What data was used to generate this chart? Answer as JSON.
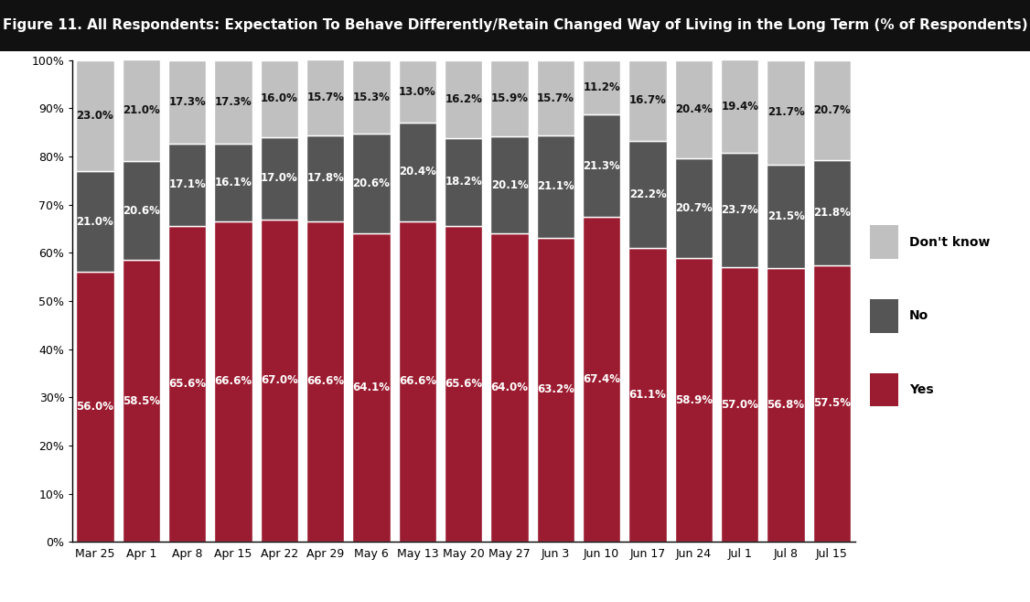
{
  "title": "Figure 11. All Respondents: Expectation To Behave Differently/Retain Changed Way of Living in the Long Term (% of Respondents)",
  "categories": [
    "Mar 25",
    "Apr 1",
    "Apr 8",
    "Apr 15",
    "Apr 22",
    "Apr 29",
    "May 6",
    "May 13",
    "May 20",
    "May 27",
    "Jun 3",
    "Jun 10",
    "Jun 17",
    "Jun 24",
    "Jul 1",
    "Jul 8",
    "Jul 15"
  ],
  "yes": [
    56.0,
    58.5,
    65.6,
    66.6,
    67.0,
    66.6,
    64.1,
    66.6,
    65.6,
    64.0,
    63.2,
    67.4,
    61.1,
    58.9,
    57.0,
    56.8,
    57.5
  ],
  "no": [
    21.0,
    20.6,
    17.1,
    16.1,
    17.0,
    17.8,
    20.6,
    20.4,
    18.2,
    20.1,
    21.1,
    21.3,
    22.2,
    20.7,
    23.7,
    21.5,
    21.8
  ],
  "dont_know": [
    23.0,
    21.0,
    17.3,
    17.3,
    16.0,
    15.7,
    15.3,
    13.0,
    16.2,
    15.9,
    15.7,
    11.2,
    16.7,
    20.4,
    19.4,
    21.7,
    20.7
  ],
  "yes_color": "#9B1B30",
  "no_color": "#555555",
  "dont_know_color": "#C0C0C0",
  "bar_edge_color": "#FFFFFF",
  "title_fontsize": 11,
  "label_fontsize": 8.5,
  "tick_fontsize": 9,
  "legend_fontsize": 10,
  "background_color": "#FFFFFF",
  "ylabel_labels": [
    "0%",
    "10%",
    "20%",
    "30%",
    "40%",
    "50%",
    "60%",
    "70%",
    "80%",
    "90%",
    "100%"
  ],
  "title_bg_color": "#111111"
}
